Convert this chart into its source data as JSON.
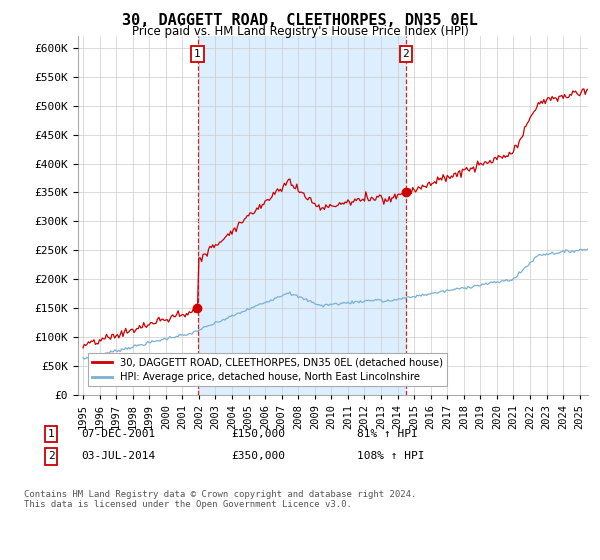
{
  "title": "30, DAGGETT ROAD, CLEETHORPES, DN35 0EL",
  "subtitle": "Price paid vs. HM Land Registry's House Price Index (HPI)",
  "legend_label_red": "30, DAGGETT ROAD, CLEETHORPES, DN35 0EL (detached house)",
  "legend_label_blue": "HPI: Average price, detached house, North East Lincolnshire",
  "annotation1_date": "07-DEC-2001",
  "annotation1_price": "£150,000",
  "annotation1_pct": "81% ↑ HPI",
  "annotation2_date": "03-JUL-2014",
  "annotation2_price": "£350,000",
  "annotation2_pct": "108% ↑ HPI",
  "footnote": "Contains HM Land Registry data © Crown copyright and database right 2024.\nThis data is licensed under the Open Government Licence v3.0.",
  "sale1_year": 2001.92,
  "sale1_price": 150000,
  "sale2_year": 2014.5,
  "sale2_price": 350000,
  "red_color": "#cc0000",
  "blue_color": "#7ab0d4",
  "shade_color": "#ddeeff",
  "dashed_color": "#cc0000",
  "background_color": "#ffffff",
  "grid_color": "#cccccc",
  "ylim": [
    0,
    620000
  ],
  "yticks": [
    0,
    50000,
    100000,
    150000,
    200000,
    250000,
    300000,
    350000,
    400000,
    450000,
    500000,
    550000,
    600000
  ],
  "xlim_start": 1994.7,
  "xlim_end": 2025.5
}
